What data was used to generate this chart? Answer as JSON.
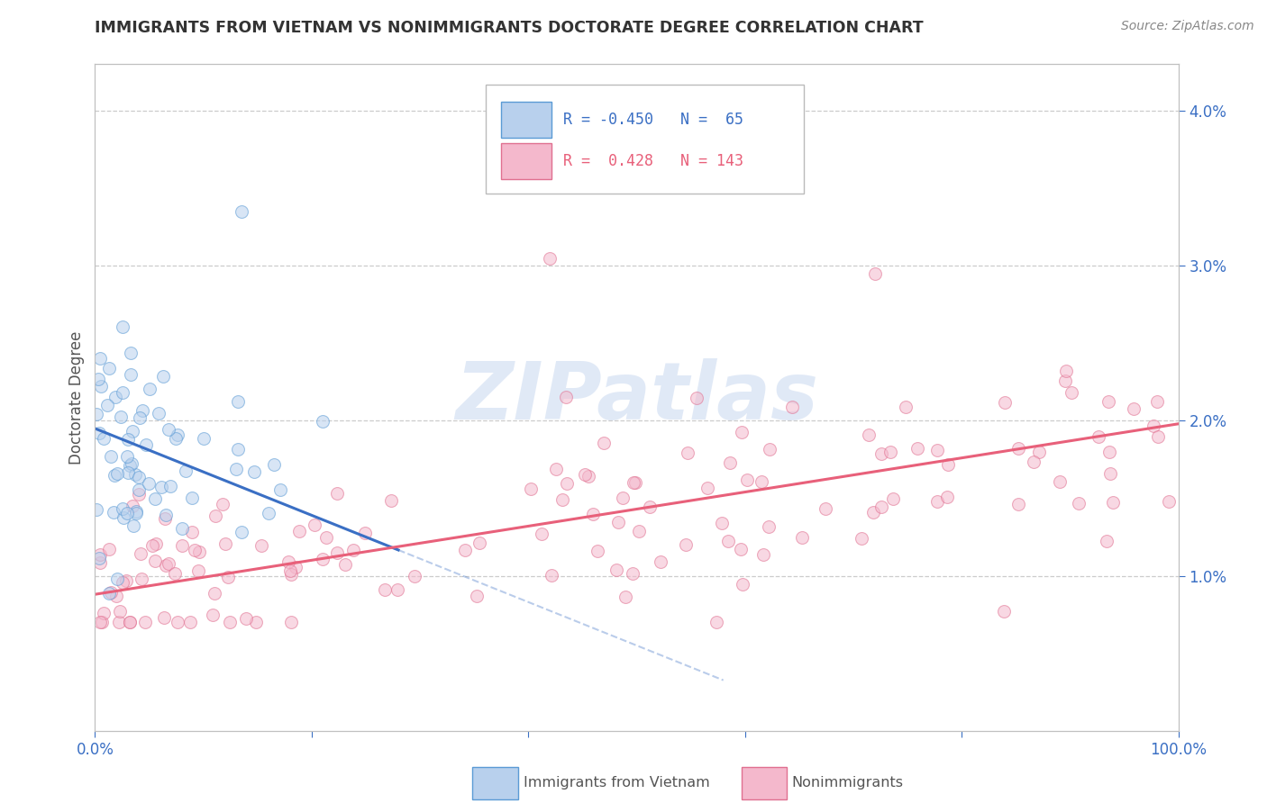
{
  "title": "IMMIGRANTS FROM VIETNAM VS NONIMMIGRANTS DOCTORATE DEGREE CORRELATION CHART",
  "source": "Source: ZipAtlas.com",
  "ylabel": "Doctorate Degree",
  "r_blue": -0.45,
  "n_blue": 65,
  "r_pink": 0.428,
  "n_pink": 143,
  "blue_scatter_face": "#b8d0ed",
  "blue_scatter_edge": "#5b9bd5",
  "pink_scatter_face": "#f4b8cc",
  "pink_scatter_edge": "#e07090",
  "blue_line_color": "#3a6fc4",
  "pink_line_color": "#e8607a",
  "watermark": "ZIPatlas",
  "watermark_color": "#c8d8f0",
  "background_color": "#ffffff",
  "grid_color": "#cccccc",
  "title_color": "#333333",
  "axis_label_color": "#555555",
  "tick_color": "#3a6fc4",
  "scatter_size": 100,
  "scatter_alpha": 0.55,
  "figsize": [
    14.06,
    8.92
  ],
  "dpi": 100,
  "ylim": [
    0.0,
    4.3
  ],
  "xlim": [
    0.0,
    100.0
  ],
  "blue_intercept": 1.95,
  "blue_slope": -0.028,
  "pink_intercept": 0.88,
  "pink_slope": 0.011
}
